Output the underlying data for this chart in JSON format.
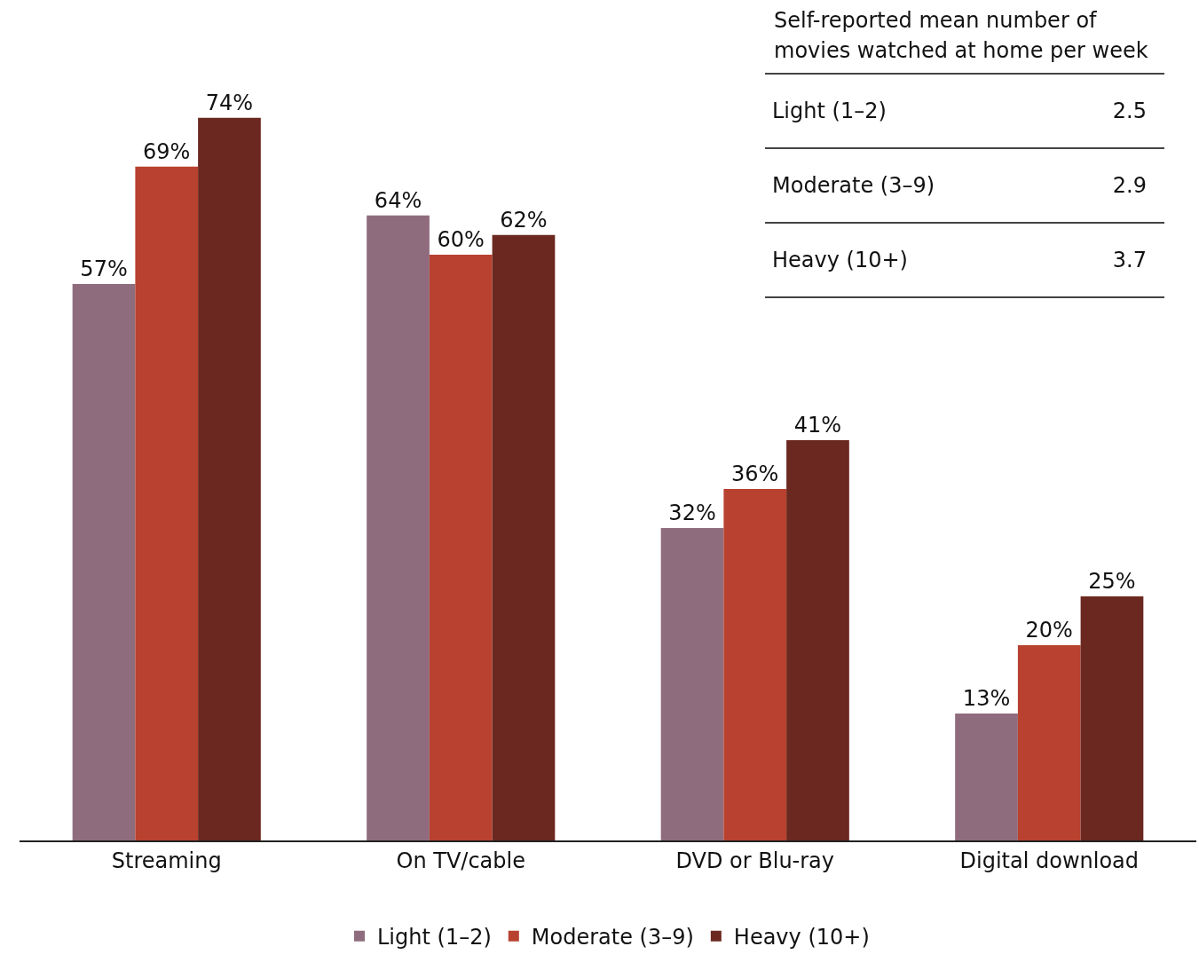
{
  "chart_data": {
    "type": "bar",
    "categories": [
      "Streaming",
      "On TV/cable",
      "DVD or Blu-ray",
      "Digital download"
    ],
    "series": [
      {
        "name": "Light (1–2)",
        "color": "#8f6c7d",
        "values": [
          57,
          64,
          32,
          13
        ],
        "value_labels": [
          "57%",
          "64%",
          "32%",
          "13%"
        ]
      },
      {
        "name": "Moderate (3–9)",
        "color": "#b8412f",
        "values": [
          69,
          60,
          36,
          20
        ],
        "value_labels": [
          "69%",
          "60%",
          "36%",
          "20%"
        ]
      },
      {
        "name": "Heavy (10+)",
        "color": "#6b2820",
        "values": [
          74,
          62,
          41,
          25
        ],
        "value_labels": [
          "74%",
          "62%",
          "41%",
          "25%"
        ]
      }
    ],
    "annotations": [
      "Self-reported mean number of movies watched at home per week",
      "Light (1–2)",
      "2.5",
      "Moderate (3–9)",
      "2.9",
      "Heavy (10+)",
      "3.7"
    ],
    "legend": "bottom",
    "grid": false
  }
}
